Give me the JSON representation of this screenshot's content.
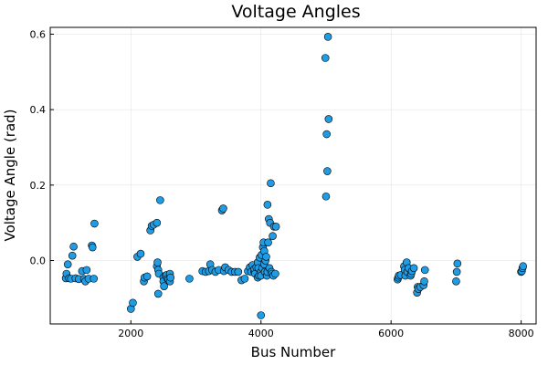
{
  "chart_data": {
    "type": "scatter",
    "title": "Voltage Angles",
    "xlabel": "Bus Number",
    "ylabel": "Voltage Angle (rad)",
    "xlim": [
      760,
      8230
    ],
    "ylim": [
      -0.168,
      0.618
    ],
    "xticks": [
      2000,
      4000,
      6000,
      8000
    ],
    "xtick_labels": [
      "2000",
      "4000",
      "6000",
      "8000"
    ],
    "yticks": [
      0.0,
      0.2,
      0.4,
      0.6
    ],
    "ytick_labels": [
      "0.0",
      "0.2",
      "0.4",
      "0.6"
    ],
    "grid": true,
    "legend": "none",
    "marker_color": "#1f9ce4",
    "series": [
      {
        "points": [
          [
            1000,
            -0.047
          ],
          [
            1010,
            -0.035
          ],
          [
            1030,
            -0.01
          ],
          [
            1050,
            -0.047
          ],
          [
            1080,
            -0.048
          ],
          [
            1100,
            0.013
          ],
          [
            1120,
            0.037
          ],
          [
            1150,
            -0.047
          ],
          [
            1200,
            -0.049
          ],
          [
            1250,
            -0.028
          ],
          [
            1280,
            -0.049
          ],
          [
            1300,
            -0.055
          ],
          [
            1320,
            -0.025
          ],
          [
            1350,
            -0.048
          ],
          [
            1400,
            0.04
          ],
          [
            1410,
            0.035
          ],
          [
            1430,
            -0.048
          ],
          [
            1440,
            0.098
          ],
          [
            2000,
            -0.128
          ],
          [
            2030,
            -0.112
          ],
          [
            2100,
            0.01
          ],
          [
            2150,
            0.018
          ],
          [
            2200,
            -0.055
          ],
          [
            2210,
            -0.045
          ],
          [
            2250,
            -0.042
          ],
          [
            2300,
            0.08
          ],
          [
            2320,
            0.092
          ],
          [
            2350,
            0.095
          ],
          [
            2400,
            0.1
          ],
          [
            2400,
            -0.015
          ],
          [
            2410,
            -0.005
          ],
          [
            2420,
            -0.025
          ],
          [
            2420,
            -0.088
          ],
          [
            2430,
            -0.035
          ],
          [
            2450,
            0.16
          ],
          [
            2500,
            -0.045
          ],
          [
            2500,
            -0.055
          ],
          [
            2510,
            -0.068
          ],
          [
            2530,
            -0.04
          ],
          [
            2550,
            -0.038
          ],
          [
            2560,
            -0.048
          ],
          [
            2580,
            -0.05
          ],
          [
            2600,
            -0.055
          ],
          [
            2600,
            -0.035
          ],
          [
            2610,
            -0.045
          ],
          [
            2900,
            -0.048
          ],
          [
            3100,
            -0.028
          ],
          [
            3150,
            -0.03
          ],
          [
            3200,
            -0.028
          ],
          [
            3220,
            -0.01
          ],
          [
            3250,
            -0.025
          ],
          [
            3300,
            -0.03
          ],
          [
            3350,
            -0.025
          ],
          [
            3400,
            0.133
          ],
          [
            3420,
            0.138
          ],
          [
            3430,
            -0.028
          ],
          [
            3450,
            -0.018
          ],
          [
            3500,
            -0.025
          ],
          [
            3550,
            -0.03
          ],
          [
            3600,
            -0.03
          ],
          [
            3650,
            -0.03
          ],
          [
            3700,
            -0.052
          ],
          [
            3750,
            -0.048
          ],
          [
            3800,
            -0.028
          ],
          [
            3830,
            -0.018
          ],
          [
            3850,
            -0.03
          ],
          [
            3870,
            -0.012
          ],
          [
            3900,
            -0.03
          ],
          [
            3900,
            -0.022
          ],
          [
            3910,
            -0.035
          ],
          [
            3930,
            -0.018
          ],
          [
            3950,
            -0.045
          ],
          [
            3950,
            -0.005
          ],
          [
            3960,
            -0.02
          ],
          [
            3970,
            -0.04
          ],
          [
            3980,
            0.008
          ],
          [
            4000,
            -0.145
          ],
          [
            4000,
            -0.03
          ],
          [
            4000,
            -0.04
          ],
          [
            4010,
            0.015
          ],
          [
            4020,
            -0.02
          ],
          [
            4030,
            0.035
          ],
          [
            4040,
            0.048
          ],
          [
            4050,
            -0.01
          ],
          [
            4050,
            0.025
          ],
          [
            4060,
            -0.03
          ],
          [
            4070,
            0.0
          ],
          [
            4080,
            0.01
          ],
          [
            4090,
            -0.04
          ],
          [
            4100,
            0.148
          ],
          [
            4100,
            -0.03
          ],
          [
            4110,
            0.048
          ],
          [
            4120,
            0.11
          ],
          [
            4130,
            -0.02
          ],
          [
            4140,
            0.1
          ],
          [
            4150,
            0.205
          ],
          [
            4160,
            -0.03
          ],
          [
            4170,
            -0.035
          ],
          [
            4180,
            0.065
          ],
          [
            4190,
            -0.04
          ],
          [
            4200,
            0.09
          ],
          [
            4220,
            -0.035
          ],
          [
            4230,
            0.09
          ],
          [
            4990,
            0.537
          ],
          [
            5000,
            0.17
          ],
          [
            5010,
            0.335
          ],
          [
            5020,
            0.237
          ],
          [
            5030,
            0.593
          ],
          [
            5040,
            0.375
          ],
          [
            6100,
            -0.05
          ],
          [
            6110,
            -0.045
          ],
          [
            6120,
            -0.04
          ],
          [
            6150,
            -0.038
          ],
          [
            6200,
            -0.015
          ],
          [
            6210,
            -0.025
          ],
          [
            6220,
            -0.04
          ],
          [
            6240,
            -0.005
          ],
          [
            6250,
            -0.03
          ],
          [
            6270,
            -0.02
          ],
          [
            6300,
            -0.04
          ],
          [
            6310,
            -0.035
          ],
          [
            6320,
            -0.028
          ],
          [
            6350,
            -0.02
          ],
          [
            6400,
            -0.085
          ],
          [
            6410,
            -0.07
          ],
          [
            6420,
            -0.075
          ],
          [
            6450,
            -0.07
          ],
          [
            6500,
            -0.065
          ],
          [
            6510,
            -0.055
          ],
          [
            6520,
            -0.025
          ],
          [
            7000,
            -0.055
          ],
          [
            7010,
            -0.03
          ],
          [
            7020,
            -0.008
          ],
          [
            8000,
            -0.03
          ],
          [
            8010,
            -0.028
          ],
          [
            8020,
            -0.02
          ],
          [
            8030,
            -0.015
          ]
        ]
      }
    ]
  }
}
